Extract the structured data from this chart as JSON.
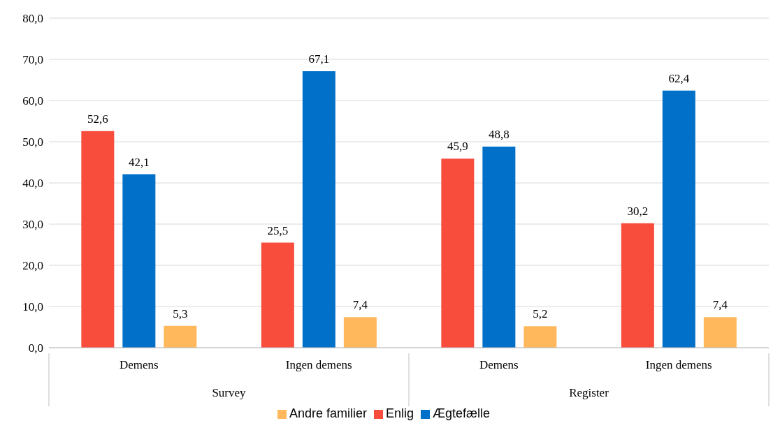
{
  "chart_data": {
    "type": "bar",
    "categories": [
      "Demens",
      "Ingen demens",
      "Demens",
      "Ingen demens"
    ],
    "annotations": [
      "Survey",
      "Register"
    ],
    "series": [
      {
        "name": "Enlig",
        "color": "#f84c3c",
        "values": [
          52.6,
          25.5,
          45.9,
          30.2
        ],
        "value_labels": [
          "52,6",
          "25,5",
          "45,9",
          "30,2"
        ]
      },
      {
        "name": "Ægtefælle",
        "color": "#0070c8",
        "values": [
          42.1,
          67.1,
          48.8,
          62.4
        ],
        "value_labels": [
          "42,1",
          "67,1",
          "48,8",
          "62,4"
        ]
      },
      {
        "name": "Andre familier",
        "color": "#ffb85c",
        "values": [
          5.3,
          7.4,
          5.2,
          7.4
        ],
        "value_labels": [
          "5,3",
          "7,4",
          "5,2",
          "7,4"
        ]
      }
    ],
    "ylim": [
      0,
      80
    ],
    "yticks": [
      {
        "value": 0,
        "label": "0,0"
      },
      {
        "value": 10,
        "label": "10,0"
      },
      {
        "value": 20,
        "label": "20,0"
      },
      {
        "value": 30,
        "label": "30,0"
      },
      {
        "value": 40,
        "label": "40,0"
      },
      {
        "value": 50,
        "label": "50,0"
      },
      {
        "value": 60,
        "label": "60,0"
      },
      {
        "value": 70,
        "label": "70,0"
      },
      {
        "value": 80,
        "label": "80,0"
      }
    ],
    "grid": "y",
    "legend": "bottom"
  }
}
